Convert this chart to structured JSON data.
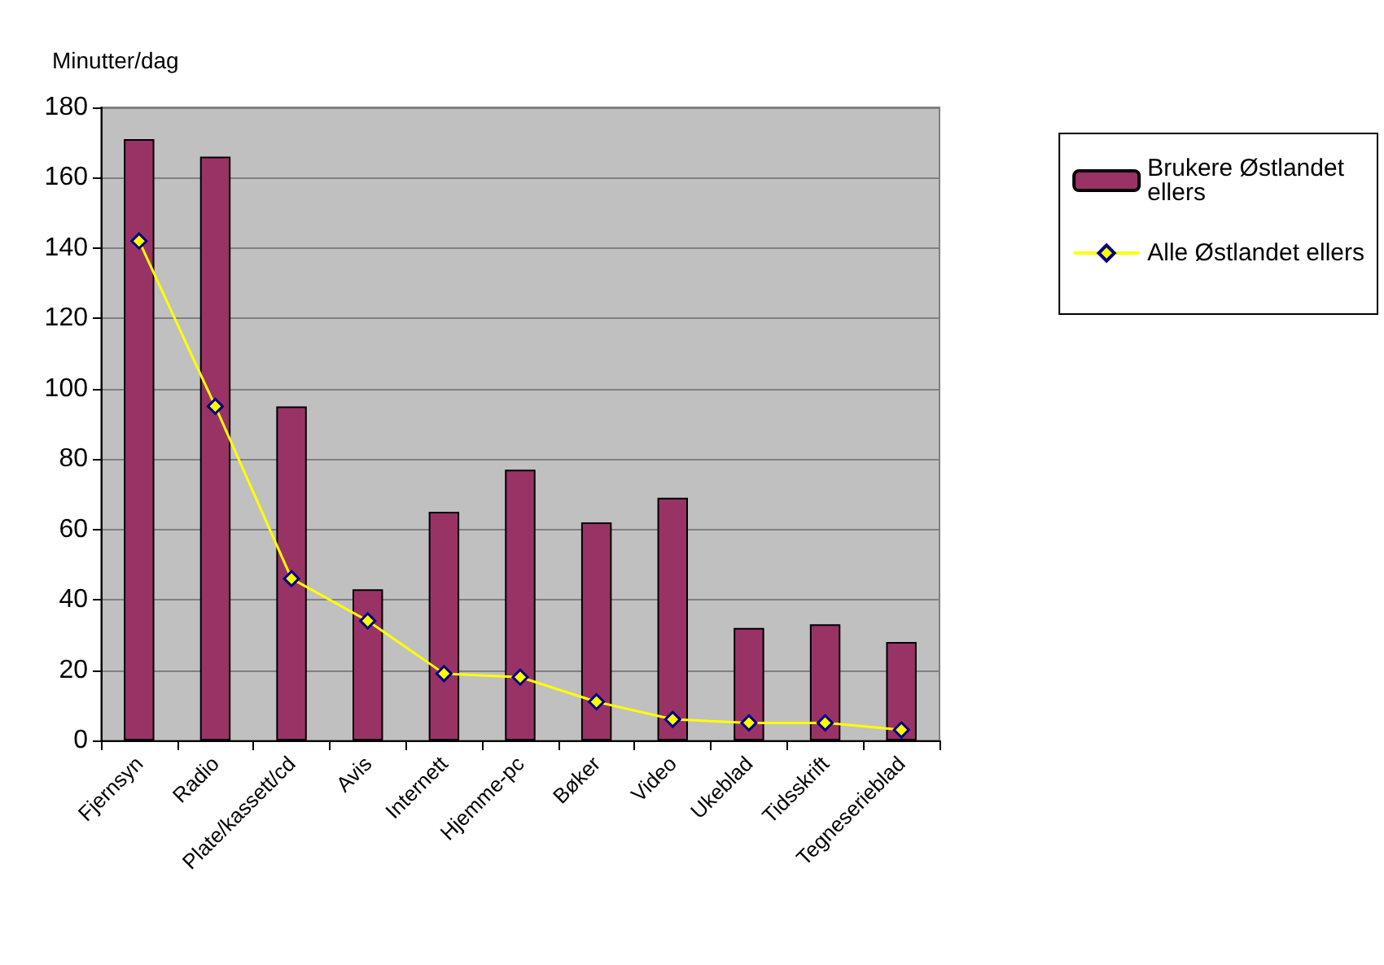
{
  "chart_data": {
    "type": "bar",
    "ylabel": "Minutter/dag",
    "categories": [
      "Fjernsyn",
      "Radio",
      "Plate/kassett/cd",
      "Avis",
      "Internett",
      "Hjemme-pc",
      "Bøker",
      "Video",
      "Ukeblad",
      "Tidsskrift",
      "Tegneserieblad"
    ],
    "series": [
      {
        "name": "Brukere Østlandet ellers",
        "color": "#993366",
        "values": [
          171,
          166,
          95,
          43,
          65,
          77,
          62,
          69,
          32,
          33,
          28
        ]
      },
      {
        "name": "Alle Østlandet ellers",
        "type": "line",
        "color": "#ffff00",
        "marker": "diamond",
        "values": [
          142,
          95,
          46,
          34,
          19,
          18,
          11,
          6,
          5,
          5,
          3
        ]
      }
    ],
    "ylim": [
      0,
      180
    ],
    "yticks": [
      0,
      20,
      40,
      60,
      80,
      100,
      120,
      140,
      160,
      180
    ],
    "grid": "y",
    "legend": "right"
  }
}
